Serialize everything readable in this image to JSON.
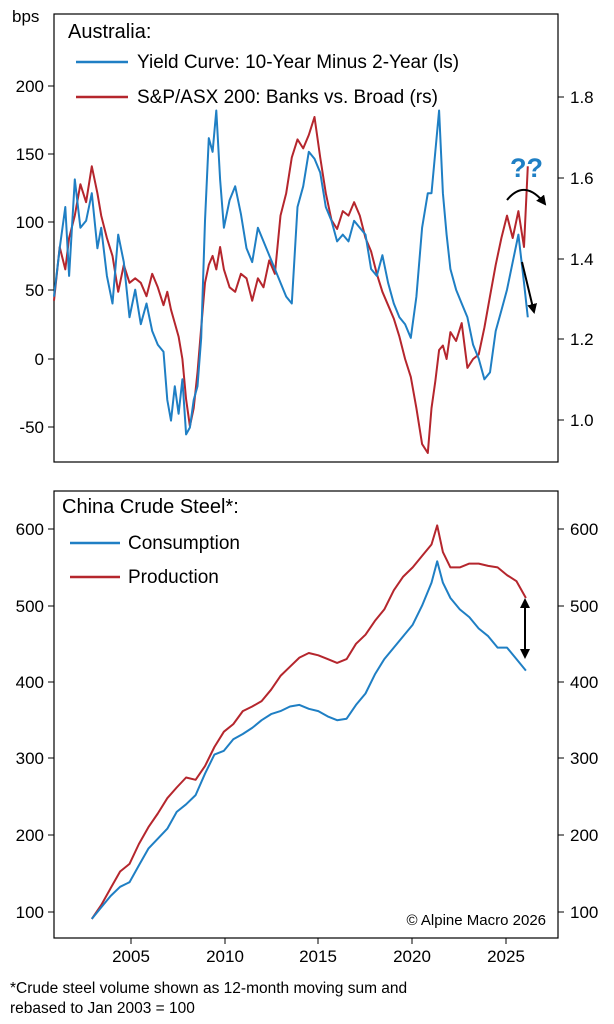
{
  "colors": {
    "blue": "#1f7fc4",
    "red": "#b5262d",
    "axis": "#000000",
    "annotation": "#1f7fc4"
  },
  "top": {
    "unit_label": "bps",
    "title": "Australia:",
    "legend": [
      "Yield Curve: 10-Year Minus 2-Year (ls)",
      "S&P/ASX 200: Banks vs. Broad (rs)"
    ],
    "legend_placement": "top-left",
    "annotation": "??",
    "annotation_arrows": [
      "curved-down-right",
      "down"
    ],
    "left_ticks": [
      "200",
      "150",
      "100",
      "50",
      "0",
      "-50"
    ],
    "right_ticks": [
      "1.8",
      "1.6",
      "1.4",
      "1.2",
      "1.0"
    ]
  },
  "bottom": {
    "title": "China Crude Steel*:",
    "legend": [
      "Consumption",
      "Production"
    ],
    "legend_placement": "top-left",
    "annotation_arrows": [
      "double-vertical"
    ],
    "left_ticks": [
      "600",
      "500",
      "400",
      "300",
      "200",
      "100"
    ],
    "right_ticks": [
      "600",
      "500",
      "400",
      "300",
      "200",
      "100"
    ],
    "x_ticks": [
      "2005",
      "2010",
      "2015",
      "2020",
      "2025"
    ]
  },
  "copyright": "© Alpine Macro 2026",
  "footnote": [
    "*Crude steel volume shown as 12-month moving sum and",
    "rebased to Jan 2003 = 100"
  ],
  "chart_data": [
    {
      "type": "line",
      "title": "Australia:",
      "ylabel": "bps",
      "grid": false,
      "xlim": [
        2001.0,
        2027.7
      ],
      "ylim_left": [
        -75,
        250
      ],
      "ylim_right": [
        0.9,
        1.9
      ],
      "series": [
        {
          "name": "Yield Curve: 10-Year Minus 2-Year (ls)",
          "axis": "left",
          "color": "#1f7fc4",
          "x": [
            2001.0,
            2001.3,
            2001.6,
            2001.8,
            2002.1,
            2002.4,
            2002.7,
            2003.0,
            2003.3,
            2003.5,
            2003.8,
            2004.1,
            2004.4,
            2004.7,
            2005.0,
            2005.3,
            2005.6,
            2005.9,
            2006.2,
            2006.5,
            2006.8,
            2007.0,
            2007.2,
            2007.4,
            2007.6,
            2007.8,
            2008.0,
            2008.2,
            2008.4,
            2008.6,
            2008.8,
            2009.0,
            2009.2,
            2009.4,
            2009.6,
            2009.8,
            2010.0,
            2010.3,
            2010.6,
            2010.9,
            2011.2,
            2011.5,
            2011.8,
            2012.1,
            2012.4,
            2012.7,
            2013.0,
            2013.3,
            2013.6,
            2013.9,
            2014.2,
            2014.5,
            2014.8,
            2015.1,
            2015.4,
            2015.7,
            2016.0,
            2016.3,
            2016.6,
            2016.9,
            2017.2,
            2017.5,
            2017.8,
            2018.1,
            2018.4,
            2018.7,
            2019.0,
            2019.3,
            2019.6,
            2019.9,
            2020.2,
            2020.5,
            2020.8,
            2021.0,
            2021.2,
            2021.4,
            2021.6,
            2021.8,
            2022.0,
            2022.3,
            2022.6,
            2022.9,
            2023.2,
            2023.5,
            2023.8,
            2024.1,
            2024.4,
            2024.7,
            2025.0,
            2025.3,
            2025.6,
            2025.9,
            2026.1
          ],
          "y": [
            45,
            80,
            110,
            60,
            130,
            95,
            100,
            120,
            80,
            95,
            60,
            40,
            90,
            70,
            30,
            50,
            25,
            40,
            20,
            10,
            5,
            -30,
            -45,
            -20,
            -40,
            -15,
            -55,
            -50,
            -30,
            -20,
            15,
            100,
            160,
            150,
            180,
            130,
            95,
            115,
            125,
            105,
            80,
            70,
            95,
            85,
            75,
            65,
            55,
            45,
            40,
            110,
            125,
            150,
            145,
            135,
            110,
            100,
            85,
            90,
            85,
            100,
            95,
            90,
            65,
            60,
            75,
            55,
            40,
            30,
            25,
            15,
            45,
            95,
            120,
            120,
            150,
            180,
            120,
            90,
            65,
            50,
            40,
            30,
            10,
            0,
            -15,
            -10,
            20,
            35,
            50,
            70,
            90,
            55,
            30
          ]
        },
        {
          "name": "S&P/ASX 200: Banks vs. Broad (rs)",
          "axis": "right",
          "color": "#b5262d",
          "x": [
            2001.0,
            2001.3,
            2001.6,
            2001.8,
            2002.1,
            2002.4,
            2002.7,
            2003.0,
            2003.3,
            2003.5,
            2003.8,
            2004.1,
            2004.4,
            2004.7,
            2005.0,
            2005.3,
            2005.6,
            2005.9,
            2006.2,
            2006.5,
            2006.8,
            2007.0,
            2007.2,
            2007.4,
            2007.6,
            2007.8,
            2008.0,
            2008.2,
            2008.4,
            2008.6,
            2008.8,
            2009.0,
            2009.2,
            2009.4,
            2009.6,
            2009.8,
            2010.0,
            2010.3,
            2010.6,
            2010.9,
            2011.2,
            2011.5,
            2011.8,
            2012.1,
            2012.4,
            2012.7,
            2013.0,
            2013.3,
            2013.6,
            2013.9,
            2014.2,
            2014.5,
            2014.8,
            2015.1,
            2015.4,
            2015.7,
            2016.0,
            2016.3,
            2016.6,
            2016.9,
            2017.2,
            2017.5,
            2017.8,
            2018.1,
            2018.4,
            2018.7,
            2019.0,
            2019.3,
            2019.6,
            2019.9,
            2020.2,
            2020.5,
            2020.8,
            2021.0,
            2021.2,
            2021.4,
            2021.6,
            2021.8,
            2022.0,
            2022.3,
            2022.6,
            2022.9,
            2023.2,
            2023.5,
            2023.8,
            2024.1,
            2024.4,
            2024.7,
            2025.0,
            2025.3,
            2025.6,
            2025.9,
            2026.1
          ],
          "y": [
            1.26,
            1.38,
            1.33,
            1.4,
            1.45,
            1.52,
            1.48,
            1.56,
            1.5,
            1.45,
            1.4,
            1.36,
            1.28,
            1.34,
            1.3,
            1.31,
            1.3,
            1.27,
            1.32,
            1.29,
            1.25,
            1.28,
            1.24,
            1.21,
            1.18,
            1.13,
            1.04,
            0.98,
            1.02,
            1.1,
            1.2,
            1.3,
            1.34,
            1.36,
            1.33,
            1.38,
            1.33,
            1.29,
            1.28,
            1.32,
            1.31,
            1.26,
            1.31,
            1.29,
            1.35,
            1.32,
            1.45,
            1.5,
            1.58,
            1.62,
            1.6,
            1.63,
            1.67,
            1.58,
            1.5,
            1.44,
            1.42,
            1.46,
            1.45,
            1.48,
            1.45,
            1.4,
            1.37,
            1.32,
            1.28,
            1.25,
            1.22,
            1.18,
            1.13,
            1.09,
            1.02,
            0.94,
            0.92,
            1.02,
            1.08,
            1.15,
            1.16,
            1.13,
            1.19,
            1.17,
            1.21,
            1.11,
            1.13,
            1.14,
            1.2,
            1.27,
            1.34,
            1.4,
            1.45,
            1.4,
            1.46,
            1.38,
            1.56
          ]
        }
      ]
    },
    {
      "type": "line",
      "title": "China Crude Steel*:",
      "grid": false,
      "xlim": [
        2001.0,
        2027.7
      ],
      "x_ticks": [
        2005,
        2010,
        2015,
        2020,
        2025
      ],
      "ylim": [
        75,
        660
      ],
      "series": [
        {
          "name": "Consumption",
          "color": "#1f7fc4",
          "x": [
            2003.0,
            2003.5,
            2004.0,
            2004.5,
            2005.0,
            2005.5,
            2006.0,
            2006.5,
            2007.0,
            2007.5,
            2008.0,
            2008.5,
            2009.0,
            2009.5,
            2010.0,
            2010.5,
            2011.0,
            2011.5,
            2012.0,
            2012.5,
            2013.0,
            2013.5,
            2014.0,
            2014.5,
            2015.0,
            2015.5,
            2016.0,
            2016.5,
            2017.0,
            2017.5,
            2018.0,
            2018.5,
            2019.0,
            2019.5,
            2020.0,
            2020.5,
            2021.0,
            2021.3,
            2021.6,
            2022.0,
            2022.5,
            2023.0,
            2023.5,
            2024.0,
            2024.5,
            2025.0,
            2025.5,
            2026.0
          ],
          "y": [
            100,
            115,
            130,
            142,
            148,
            170,
            192,
            205,
            218,
            240,
            250,
            262,
            290,
            315,
            320,
            335,
            342,
            350,
            360,
            368,
            372,
            378,
            380,
            375,
            372,
            365,
            360,
            362,
            380,
            395,
            420,
            440,
            455,
            470,
            485,
            510,
            540,
            568,
            540,
            520,
            505,
            495,
            480,
            470,
            455,
            455,
            440,
            425
          ]
        },
        {
          "name": "Production",
          "color": "#b5262d",
          "x": [
            2003.0,
            2003.5,
            2004.0,
            2004.5,
            2005.0,
            2005.5,
            2006.0,
            2006.5,
            2007.0,
            2007.5,
            2008.0,
            2008.5,
            2009.0,
            2009.5,
            2010.0,
            2010.5,
            2011.0,
            2011.5,
            2012.0,
            2012.5,
            2013.0,
            2013.5,
            2014.0,
            2014.5,
            2015.0,
            2015.5,
            2016.0,
            2016.5,
            2017.0,
            2017.5,
            2018.0,
            2018.5,
            2019.0,
            2019.5,
            2020.0,
            2020.5,
            2021.0,
            2021.3,
            2021.6,
            2022.0,
            2022.5,
            2023.0,
            2023.5,
            2024.0,
            2024.5,
            2025.0,
            2025.5,
            2026.0
          ],
          "y": [
            100,
            118,
            140,
            162,
            172,
            198,
            220,
            238,
            258,
            272,
            285,
            282,
            300,
            325,
            345,
            355,
            372,
            378,
            385,
            400,
            418,
            430,
            442,
            448,
            445,
            440,
            435,
            440,
            460,
            472,
            490,
            505,
            530,
            548,
            560,
            575,
            590,
            615,
            580,
            560,
            560,
            565,
            565,
            562,
            560,
            550,
            542,
            520
          ]
        }
      ]
    }
  ]
}
